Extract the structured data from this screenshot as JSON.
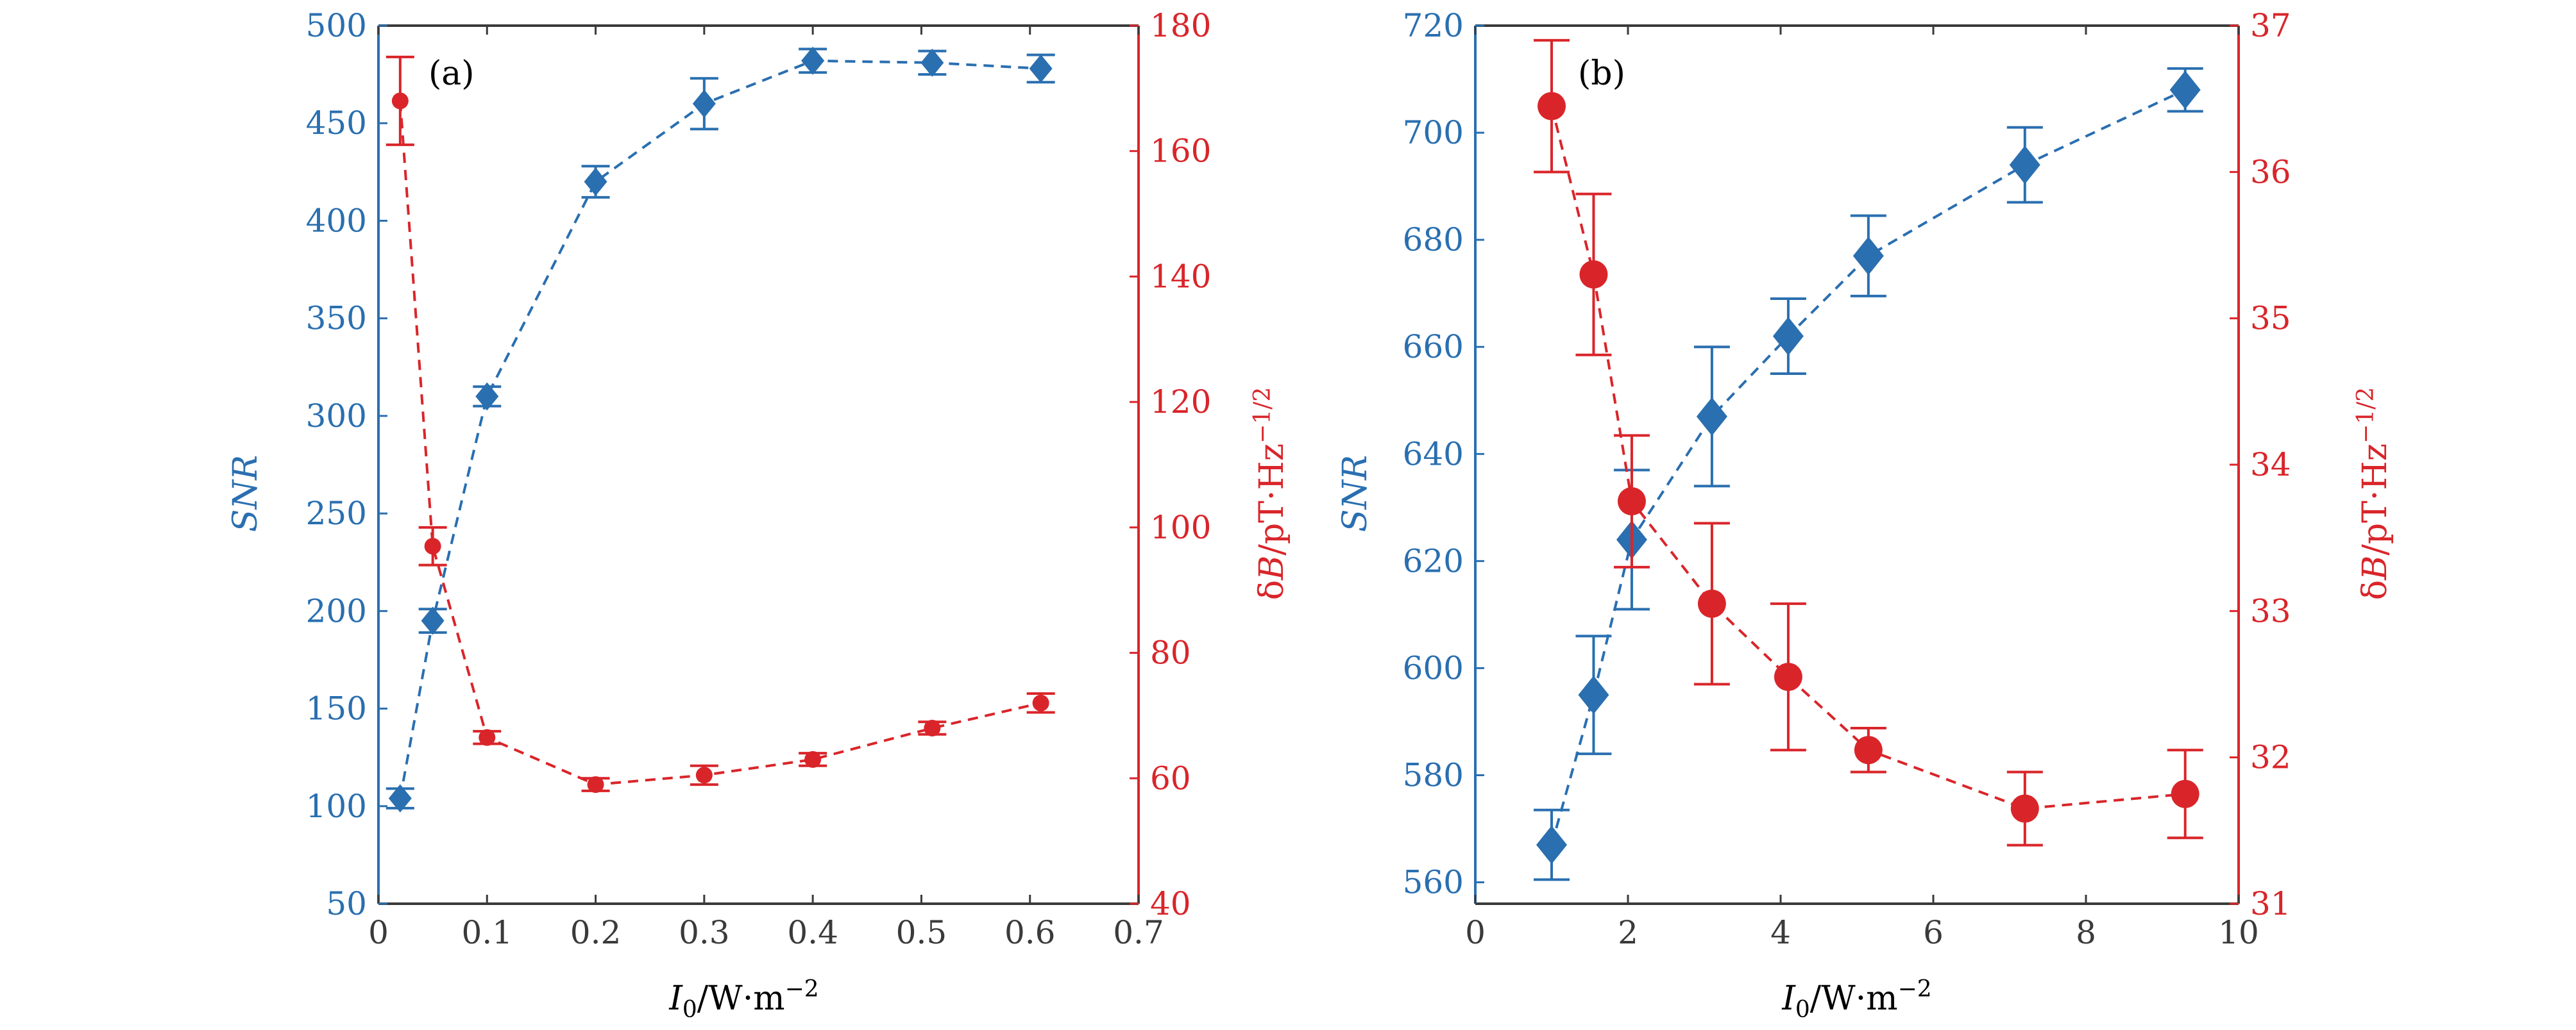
{
  "colors": {
    "snr": "#2a6fb0",
    "noise": "#d9252a",
    "axis": "#3a3a3a"
  },
  "chart_data": [
    {
      "type": "scatter",
      "panel_label": "(a)",
      "grid": false,
      "x_axis": {
        "label": "I",
        "label_subscript": "0",
        "label_unit": "/W·m",
        "label_superscript": "−2",
        "range": [
          0,
          0.7
        ],
        "ticks": [
          0,
          0.1,
          0.2,
          0.3,
          0.4,
          0.5,
          0.6,
          0.7
        ],
        "tick_labels": [
          "0",
          "0.1",
          "0.2",
          "0.3",
          "0.4",
          "0.5",
          "0.6",
          "0.7"
        ]
      },
      "y_left": {
        "label": "SNR",
        "range": [
          50,
          500
        ],
        "ticks": [
          50,
          100,
          150,
          200,
          250,
          300,
          350,
          400,
          450,
          500
        ],
        "tick_labels": [
          "50",
          "100",
          "150",
          "200",
          "250",
          "300",
          "350",
          "400",
          "450",
          "500"
        ]
      },
      "y_right": {
        "label_prefix": "δ",
        "label_var": "B",
        "label_unit": "/pT·Hz",
        "label_superscript": "−1/2",
        "range": [
          40,
          180
        ],
        "ticks": [
          40,
          60,
          80,
          100,
          120,
          140,
          160,
          180
        ],
        "tick_labels": [
          "40",
          "60",
          "80",
          "100",
          "120",
          "140",
          "160",
          "180"
        ]
      },
      "series": [
        {
          "name": "SNR",
          "axis": "left",
          "marker": "diamond",
          "line": "dashed",
          "points": [
            {
              "x": 0.02,
              "y": 104,
              "err": 5
            },
            {
              "x": 0.05,
              "y": 195,
              "err": 6
            },
            {
              "x": 0.1,
              "y": 310,
              "err": 5
            },
            {
              "x": 0.2,
              "y": 420,
              "err": 8
            },
            {
              "x": 0.3,
              "y": 460,
              "err": 13
            },
            {
              "x": 0.4,
              "y": 482,
              "err": 6
            },
            {
              "x": 0.51,
              "y": 481,
              "err": 6
            },
            {
              "x": 0.61,
              "y": 478,
              "err": 7
            }
          ]
        },
        {
          "name": "δB",
          "axis": "right",
          "marker": "circle",
          "line": "dashed",
          "points": [
            {
              "x": 0.02,
              "y": 168,
              "err": 7
            },
            {
              "x": 0.05,
              "y": 97,
              "err": 3
            },
            {
              "x": 0.1,
              "y": 66.5,
              "err": 1
            },
            {
              "x": 0.2,
              "y": 59,
              "err": 1
            },
            {
              "x": 0.3,
              "y": 60.5,
              "err": 1.5
            },
            {
              "x": 0.4,
              "y": 63,
              "err": 1
            },
            {
              "x": 0.51,
              "y": 68,
              "err": 1
            },
            {
              "x": 0.61,
              "y": 72,
              "err": 1.5
            }
          ]
        }
      ]
    },
    {
      "type": "scatter",
      "panel_label": "(b)",
      "grid": false,
      "x_axis": {
        "label": "I",
        "label_subscript": "0",
        "label_unit": "/W·m",
        "label_superscript": "−2",
        "range": [
          0,
          10
        ],
        "ticks": [
          0,
          2,
          4,
          6,
          8,
          10
        ],
        "tick_labels": [
          "0",
          "2",
          "4",
          "6",
          "8",
          "10"
        ]
      },
      "y_left": {
        "label": "SNR",
        "range": [
          556,
          720
        ],
        "ticks": [
          560,
          580,
          600,
          620,
          640,
          660,
          680,
          700,
          720
        ],
        "tick_labels": [
          "560",
          "580",
          "600",
          "620",
          "640",
          "660",
          "680",
          "700",
          "720"
        ]
      },
      "y_right": {
        "label_prefix": "δ",
        "label_var": "B",
        "label_unit": "/pT·Hz",
        "label_superscript": "−1/2",
        "range": [
          31,
          37
        ],
        "ticks": [
          31,
          32,
          33,
          34,
          35,
          36,
          37
        ],
        "tick_labels": [
          "31",
          "32",
          "33",
          "34",
          "35",
          "36",
          "37"
        ]
      },
      "series": [
        {
          "name": "SNR",
          "axis": "left",
          "marker": "diamond",
          "line": "dashed",
          "points": [
            {
              "x": 1.0,
              "y": 567,
              "err": 6.5
            },
            {
              "x": 1.55,
              "y": 595,
              "err": 11
            },
            {
              "x": 2.05,
              "y": 624,
              "err": 13
            },
            {
              "x": 3.1,
              "y": 647,
              "err": 13
            },
            {
              "x": 4.1,
              "y": 662,
              "err": 7
            },
            {
              "x": 5.15,
              "y": 677,
              "err": 7.5
            },
            {
              "x": 7.2,
              "y": 694,
              "err": 7
            },
            {
              "x": 9.3,
              "y": 708,
              "err": 4
            }
          ]
        },
        {
          "name": "δB",
          "axis": "right",
          "marker": "circle",
          "line": "dashed",
          "points": [
            {
              "x": 1.0,
              "y": 36.45,
              "err": 0.45
            },
            {
              "x": 1.55,
              "y": 35.3,
              "err": 0.55
            },
            {
              "x": 2.05,
              "y": 33.75,
              "err": 0.45
            },
            {
              "x": 3.1,
              "y": 33.05,
              "err": 0.55
            },
            {
              "x": 4.1,
              "y": 32.55,
              "err": 0.5
            },
            {
              "x": 5.15,
              "y": 32.05,
              "err": 0.15
            },
            {
              "x": 7.2,
              "y": 31.65,
              "err": 0.25
            },
            {
              "x": 9.3,
              "y": 31.75,
              "err": 0.3
            }
          ]
        }
      ]
    }
  ]
}
